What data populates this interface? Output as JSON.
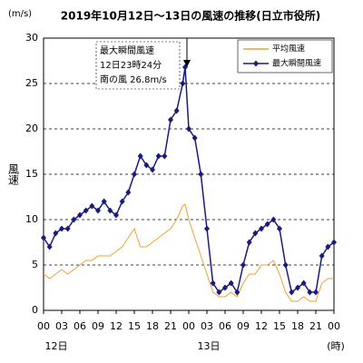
{
  "chart_data": {
    "type": "line",
    "title": "2019年10月12日～13日の風速の推移(日立市役所)",
    "y_unit": "(m/s)",
    "ylabel": "風速",
    "xlabel": "(時)",
    "day_labels": [
      "12日",
      "13日"
    ],
    "annotation": [
      "最大瞬間風速",
      "12日23時24分",
      "南の風 26.8m/s"
    ],
    "x": [
      0,
      1,
      2,
      3,
      4,
      5,
      6,
      7,
      8,
      9,
      10,
      11,
      12,
      13,
      14,
      15,
      16,
      17,
      18,
      19,
      20,
      21,
      22,
      23,
      23.4,
      24,
      25,
      26,
      27,
      28,
      29,
      30,
      31,
      32,
      33,
      34,
      35,
      36,
      37,
      38,
      39,
      40,
      41,
      42,
      43,
      44,
      45,
      46,
      47,
      48
    ],
    "series": [
      {
        "name": "平均風速",
        "color": "#f0a030",
        "marker": false,
        "values": [
          4,
          3.5,
          4,
          4.5,
          4,
          4.5,
          5,
          5.5,
          5.5,
          6,
          6,
          6,
          6.5,
          7,
          8,
          9,
          7,
          7,
          7.5,
          8,
          8.5,
          9,
          10,
          11.5,
          11.7,
          10,
          8,
          6,
          4,
          2,
          1.5,
          1.5,
          2,
          1.5,
          3,
          4,
          4,
          5,
          5,
          5.5,
          4,
          2,
          1,
          1,
          1.5,
          1,
          1,
          3,
          3.5,
          3.5
        ]
      },
      {
        "name": "最大瞬間風速",
        "color": "#1a1a80",
        "marker": true,
        "values": [
          8,
          7,
          8.5,
          9,
          9,
          10,
          10.5,
          11,
          11.5,
          11,
          12,
          11,
          10.5,
          12,
          13,
          15,
          17,
          16,
          15.5,
          17,
          17,
          21,
          22,
          25,
          26.8,
          20,
          19,
          15,
          9,
          3,
          2,
          2.5,
          3,
          2,
          5,
          7.5,
          8.5,
          9,
          9.5,
          10,
          9,
          5,
          2,
          2.5,
          3,
          2,
          2,
          6,
          7,
          7.5
        ]
      }
    ],
    "xlim": [
      0,
      48
    ],
    "xticks": [
      {
        "value": 0,
        "label": "00"
      },
      {
        "value": 3,
        "label": "03"
      },
      {
        "value": 6,
        "label": "06"
      },
      {
        "value": 9,
        "label": "09"
      },
      {
        "value": 12,
        "label": "12"
      },
      {
        "value": 15,
        "label": "15"
      },
      {
        "value": 18,
        "label": "18"
      },
      {
        "value": 21,
        "label": "21"
      },
      {
        "value": 24,
        "label": "00"
      },
      {
        "value": 27,
        "label": "03"
      },
      {
        "value": 30,
        "label": "06"
      },
      {
        "value": 33,
        "label": "09"
      },
      {
        "value": 36,
        "label": "12"
      },
      {
        "value": 39,
        "label": "15"
      },
      {
        "value": 42,
        "label": "18"
      },
      {
        "value": 45,
        "label": "21"
      },
      {
        "value": 48,
        "label": "00"
      }
    ],
    "ylim": [
      0,
      30
    ],
    "yticks": [
      0,
      5,
      10,
      15,
      20,
      25,
      30
    ],
    "grid": true,
    "legend": "upper right"
  }
}
